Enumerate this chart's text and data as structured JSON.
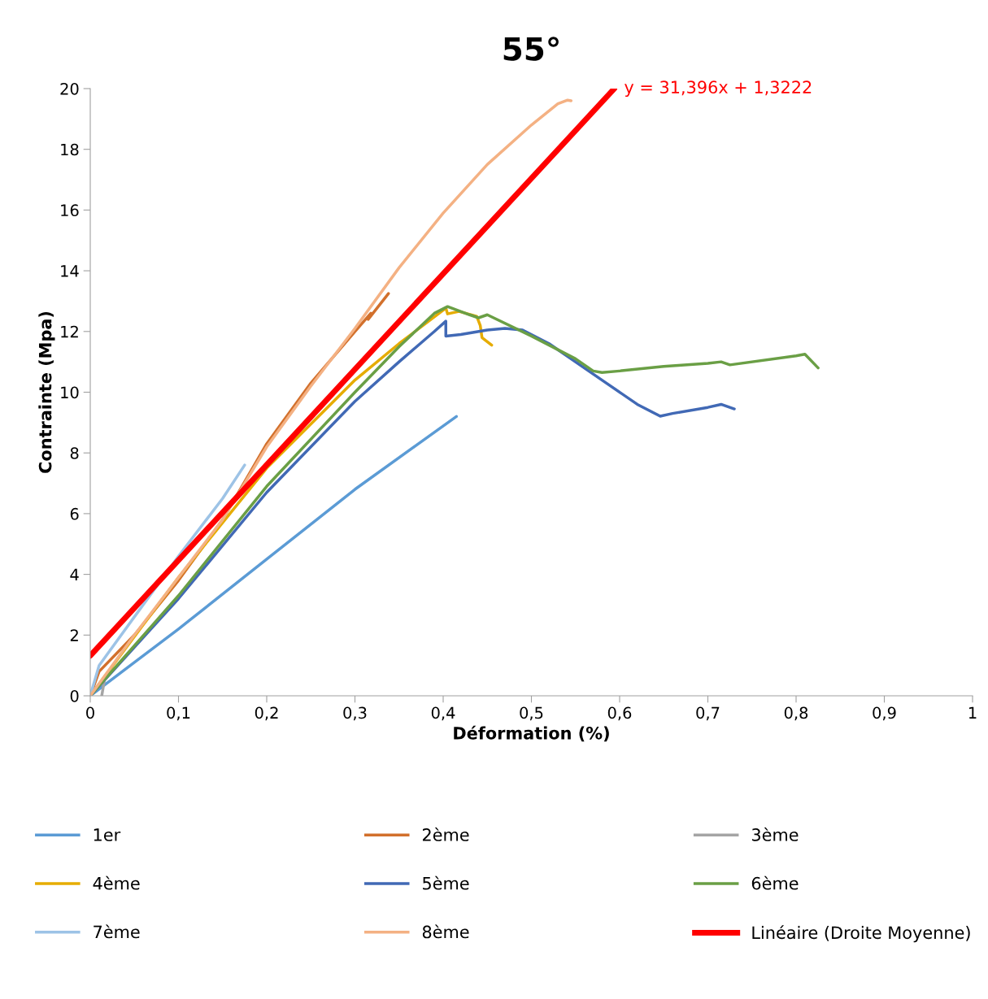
{
  "chart_data": {
    "type": "line",
    "title": "55°",
    "xlabel": "Déformation (%)",
    "ylabel": "Contrainte (Mpa)",
    "xlim": [
      0,
      1
    ],
    "ylim": [
      0,
      20
    ],
    "xticks": [
      0,
      {
        "value": 0.1,
        "label": "0,1"
      },
      {
        "value": 0.2,
        "label": "0,2"
      },
      {
        "value": 0.3,
        "label": "0,3"
      },
      {
        "value": 0.4,
        "label": "0,4"
      },
      {
        "value": 0.5,
        "label": "0,5"
      },
      {
        "value": 0.6,
        "label": "0,6"
      },
      {
        "value": 0.7,
        "label": "0,7"
      },
      {
        "value": 0.8,
        "label": "0,8"
      },
      {
        "value": 0.9,
        "label": "0,9"
      },
      1
    ],
    "yticks": [
      0,
      2,
      4,
      6,
      8,
      10,
      12,
      14,
      16,
      18,
      20
    ],
    "grid": false,
    "legend": "bottom",
    "marker": "none",
    "line_style": "solid",
    "annotations": [
      "y = 31,396x + 1,3222"
    ],
    "series": [
      {
        "name": "1er",
        "color": "#5b9bd5",
        "x": [
          0,
          0.05,
          0.1,
          0.2,
          0.3,
          0.415
        ],
        "values": [
          0,
          1.1,
          2.2,
          4.5,
          6.8,
          9.2
        ]
      },
      {
        "name": "2ème",
        "color": "#d2702c",
        "x": [
          0,
          0.01,
          0.05,
          0.1,
          0.15,
          0.2,
          0.25,
          0.3,
          0.318,
          0.315,
          0.338
        ],
        "values": [
          0,
          0.8,
          2.0,
          3.8,
          5.8,
          8.3,
          10.3,
          12.0,
          12.6,
          12.4,
          13.25
        ]
      },
      {
        "name": "3ème",
        "color": "#a5a5a5",
        "x": [
          0.013,
          0.016
        ],
        "values": [
          0,
          0.5
        ]
      },
      {
        "name": "4ème",
        "color": "#e6ac00",
        "x": [
          0,
          0.1,
          0.2,
          0.3,
          0.35,
          0.403,
          0.405,
          0.418,
          0.438,
          0.442,
          0.444,
          0.455
        ],
        "values": [
          0,
          3.9,
          7.5,
          10.4,
          11.6,
          12.77,
          12.58,
          12.66,
          12.5,
          12.2,
          11.8,
          11.55
        ]
      },
      {
        "name": "5ème",
        "color": "#4169b5",
        "x": [
          0,
          0.1,
          0.2,
          0.3,
          0.35,
          0.39,
          0.403,
          0.403,
          0.42,
          0.45,
          0.47,
          0.49,
          0.52,
          0.58,
          0.62,
          0.646,
          0.66,
          0.7,
          0.715,
          0.73
        ],
        "values": [
          0,
          3.2,
          6.7,
          9.7,
          11.0,
          12.0,
          12.34,
          11.85,
          11.9,
          12.05,
          12.1,
          12.05,
          11.6,
          10.4,
          9.6,
          9.21,
          9.3,
          9.5,
          9.6,
          9.45
        ]
      },
      {
        "name": "6ème",
        "color": "#6a9f45",
        "x": [
          0,
          0.1,
          0.2,
          0.3,
          0.35,
          0.39,
          0.405,
          0.43,
          0.44,
          0.45,
          0.5,
          0.55,
          0.57,
          0.58,
          0.6,
          0.65,
          0.7,
          0.715,
          0.725,
          0.8,
          0.81,
          0.825
        ],
        "values": [
          0,
          3.3,
          6.9,
          10.0,
          11.5,
          12.6,
          12.82,
          12.55,
          12.45,
          12.55,
          11.85,
          11.1,
          10.7,
          10.65,
          10.7,
          10.85,
          10.95,
          11.0,
          10.9,
          11.2,
          11.25,
          10.8
        ]
      },
      {
        "name": "7ème",
        "color": "#9dc3e6",
        "x": [
          0,
          0.01,
          0.05,
          0.1,
          0.15,
          0.175
        ],
        "values": [
          0,
          1.0,
          2.6,
          4.6,
          6.5,
          7.6
        ]
      },
      {
        "name": "8ème",
        "color": "#f4b183",
        "x": [
          0,
          0.05,
          0.1,
          0.15,
          0.2,
          0.25,
          0.3,
          0.35,
          0.4,
          0.45,
          0.5,
          0.53,
          0.541,
          0.545
        ],
        "values": [
          0,
          2.0,
          3.9,
          5.8,
          8.2,
          10.2,
          12.1,
          14.1,
          15.9,
          17.5,
          18.8,
          19.5,
          19.62,
          19.6
        ]
      },
      {
        "name": "Linéaire (Droite Moyenne)",
        "color": "#ff0000",
        "x": [
          0,
          0.594
        ],
        "values": [
          1.32,
          20.0
        ]
      }
    ]
  }
}
